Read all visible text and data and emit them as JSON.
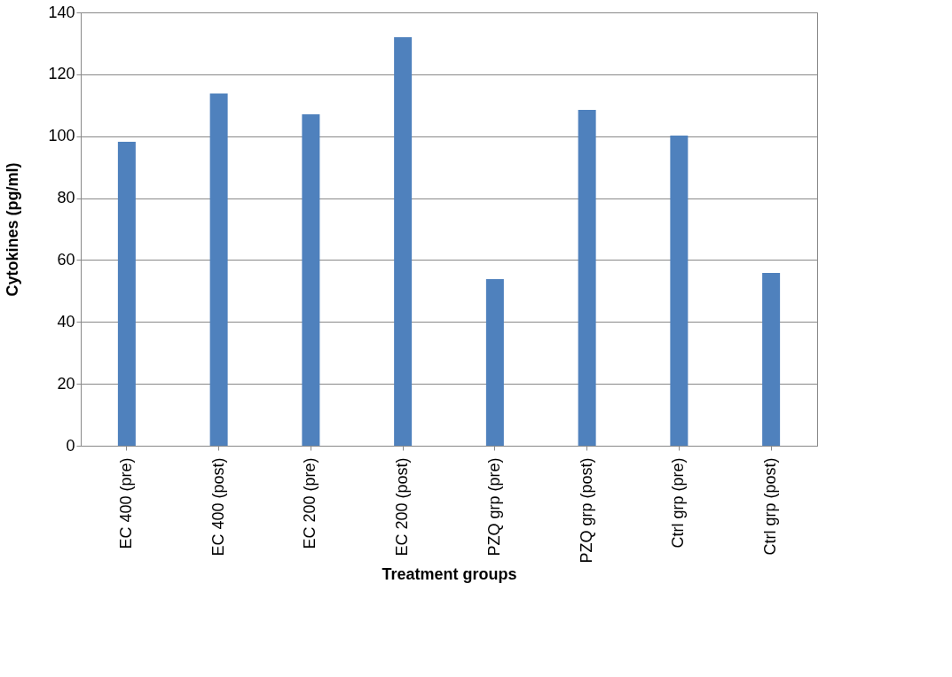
{
  "chart_data": {
    "type": "bar",
    "xlabel": "Treatment groups",
    "ylabel": "Cytokines (pg/ml)",
    "categories": [
      "EC 400 (pre)",
      "EC 400 (post)",
      "EC 200 (pre)",
      "EC 200 (post)",
      "PZQ grp (pre)",
      "PZQ grp (post)",
      "Ctrl grp (pre)",
      "Ctrl grp (post)"
    ],
    "series": [
      {
        "color": "#4f81bd",
        "values": [
          98.2,
          113.8,
          107.1,
          132,
          53.8,
          108.5,
          100.2,
          55.8
        ]
      }
    ],
    "ylim": [
      0,
      140
    ],
    "yticks": [
      0,
      20,
      40,
      60,
      80,
      100,
      120,
      140
    ],
    "grid": "y"
  }
}
